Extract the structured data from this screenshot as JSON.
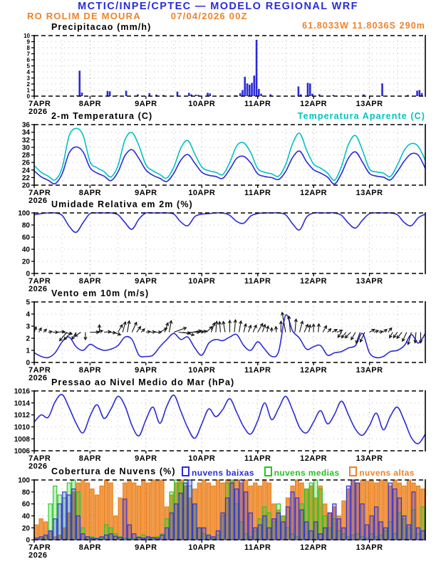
{
  "header": {
    "title": "MCTIC/INPE/CPTEC — MODELO REGIONAL WRF",
    "station": "RO ROLIM DE MOURA",
    "run": "07/04/2026 00Z",
    "coords": "61.8033W 11.8036S 290m"
  },
  "colors": {
    "blue": "#2b2bd8",
    "cyan": "#00c2c2",
    "orange": "#f08228",
    "orange_fill": "#f49a47",
    "orange_stroke": "#e3801f",
    "green": "#22c51f",
    "grid": "#bdbdbd",
    "grid_day": "#a8a8a8",
    "frame": "#000000",
    "arrow": "#111111"
  },
  "x_axis": {
    "days": [
      "7APR",
      "8APR",
      "9APR",
      "10APR",
      "11APR",
      "12APR",
      "13APR"
    ],
    "year": "2026",
    "hours_total": 168
  },
  "chart_data": [
    {
      "id": "precipitation",
      "type": "bar",
      "title": "Precipitacao (mm/h)",
      "ylabel": "mm/h",
      "ylim": [
        0,
        10
      ],
      "yticks": [
        0,
        1,
        2,
        3,
        4,
        5,
        6,
        7,
        8,
        9,
        10
      ],
      "bars_hour": [
        18,
        19,
        20,
        31,
        32,
        35,
        39,
        44,
        49,
        52,
        55,
        61,
        66,
        67,
        69,
        70,
        74,
        75,
        80,
        86,
        88,
        89,
        90,
        91,
        92,
        93,
        94,
        95,
        96,
        97,
        101,
        113,
        114,
        117,
        118,
        119,
        122,
        128,
        134,
        141,
        149,
        160,
        164,
        165,
        166
      ],
      "bars_value": [
        0.15,
        4.2,
        0.6,
        0.85,
        0.8,
        0.15,
        0.9,
        0.3,
        0.5,
        0.25,
        0.2,
        0.75,
        0.55,
        0.3,
        0.25,
        0.2,
        0.55,
        0.45,
        0.1,
        0.15,
        0.5,
        1.0,
        3.2,
        2.1,
        1.9,
        2.2,
        3.4,
        9.3,
        1.2,
        0.4,
        0.3,
        1.6,
        0.3,
        2.2,
        2.1,
        0.4,
        0.3,
        0.2,
        0.15,
        0.3,
        2.1,
        0.2,
        0.9,
        1.0,
        0.5
      ]
    },
    {
      "id": "temperature",
      "type": "line",
      "title": "2-m Temperatura (C)",
      "title2": "Temperatura Aparente (C)",
      "ylim": [
        20,
        36
      ],
      "yticks": [
        20,
        22,
        24,
        26,
        28,
        30,
        32,
        34,
        36
      ],
      "step_h": 3,
      "series": [
        {
          "name": "2-m Temperatura (C)",
          "color": "blue",
          "values": [
            23.8,
            22.2,
            21.3,
            20.4,
            23.0,
            28.5,
            30.1,
            28.8,
            24.6,
            23.2,
            22.4,
            21.2,
            23.5,
            27.8,
            29.4,
            27.0,
            24.0,
            22.6,
            21.8,
            21.0,
            23.2,
            26.6,
            28.1,
            25.8,
            23.4,
            22.6,
            22.3,
            21.8,
            24.2,
            27.1,
            27.6,
            25.9,
            23.0,
            22.3,
            22.0,
            21.5,
            23.6,
            27.3,
            29.0,
            26.2,
            24.1,
            23.2,
            22.1,
            20.3,
            23.1,
            27.2,
            28.8,
            26.1,
            23.1,
            22.4,
            22.1,
            21.4,
            23.6,
            26.4,
            28.3,
            27.9,
            24.4
          ]
        },
        {
          "name": "Temperatura Aparente (C)",
          "color": "cyan",
          "values": [
            25.2,
            23.4,
            22.4,
            21.4,
            24.6,
            33.0,
            35.0,
            33.2,
            26.2,
            24.6,
            23.6,
            22.2,
            25.2,
            32.0,
            33.9,
            30.4,
            25.4,
            23.8,
            22.8,
            21.9,
            24.8,
            29.8,
            31.8,
            28.2,
            24.8,
            23.8,
            23.4,
            22.8,
            26.0,
            30.4,
            31.2,
            28.6,
            24.4,
            23.4,
            23.0,
            22.4,
            25.4,
            31.0,
            33.7,
            29.3,
            25.6,
            24.5,
            23.2,
            21.3,
            25.0,
            30.8,
            33.1,
            29.2,
            24.3,
            23.5,
            23.2,
            22.3,
            25.3,
            29.3,
            31.0,
            30.2,
            26.5
          ]
        }
      ]
    },
    {
      "id": "humidity",
      "type": "line",
      "title": "Umidade Relativa em 2m (%)",
      "ylim": [
        0,
        100
      ],
      "yticks": [
        0,
        20,
        40,
        60,
        80,
        100
      ],
      "step_h": 3,
      "series": [
        {
          "name": "Umidade Relativa em 2m",
          "color": "blue",
          "values": [
            97,
            99,
            100,
            100,
            96,
            78,
            68,
            84,
            99,
            100,
            100,
            100,
            97,
            84,
            73,
            90,
            100,
            100,
            100,
            100,
            98,
            85,
            79,
            94,
            98,
            99,
            100,
            100,
            96,
            86,
            83,
            95,
            99,
            100,
            100,
            100,
            97,
            82,
            72,
            93,
            100,
            100,
            100,
            100,
            96,
            83,
            75,
            88,
            99,
            100,
            100,
            100,
            97,
            84,
            79,
            92,
            98
          ]
        }
      ]
    },
    {
      "id": "wind",
      "type": "line+arrows",
      "title": "Vento em 10m (m/s)",
      "ylim": [
        0,
        5
      ],
      "yticks": [
        0,
        1,
        2,
        3,
        4,
        5
      ],
      "step_h": 3,
      "arrow_anchor": 2.5,
      "arrow_step_h": 2,
      "speed": [
        0.8,
        0.5,
        0.4,
        0.8,
        1.7,
        2.1,
        1.3,
        1.0,
        1.5,
        1.2,
        1.0,
        1.1,
        1.4,
        2.1,
        1.9,
        0.6,
        0.5,
        0.6,
        1.3,
        1.9,
        2.4,
        1.9,
        2.1,
        1.2,
        0.6,
        1.6,
        1.9,
        1.8,
        2.1,
        2.3,
        1.4,
        1.0,
        1.7,
        1.1,
        0.5,
        0.9,
        3.9,
        2.6,
        2.0,
        1.1,
        1.3,
        1.4,
        0.6,
        0.8,
        0.9,
        1.2,
        1.4,
        2.4,
        0.8,
        0.4,
        0.5,
        0.9,
        1.0,
        1.4,
        2.3,
        1.6,
        2.4
      ],
      "dir_deg": [
        70,
        60,
        45,
        10,
        0,
        5,
        350,
        230,
        225,
        240,
        215,
        270,
        0,
        10,
        90,
        5,
        355,
        340,
        60,
        75,
        80,
        65,
        55,
        45,
        10,
        5,
        0,
        30,
        70,
        80,
        20,
        355,
        345,
        0,
        10,
        5,
        15,
        45,
        70,
        85,
        95,
        100,
        90,
        85,
        80,
        75,
        70,
        65,
        60,
        70,
        80,
        90,
        95,
        90,
        100,
        95,
        85,
        75,
        65,
        80,
        90,
        85,
        60,
        45,
        30,
        20,
        235,
        230,
        225,
        240,
        250,
        245,
        30,
        20,
        10,
        40,
        50,
        240,
        235,
        230,
        245,
        255,
        265,
        270
      ]
    },
    {
      "id": "pressure",
      "type": "line",
      "title": "Pressao ao Nivel Medio do Mar (hPa)",
      "ylim": [
        1006,
        1016
      ],
      "yticks": [
        1006,
        1008,
        1010,
        1012,
        1014,
        1016
      ],
      "step_h": 3,
      "series": [
        {
          "name": "Pressao ao Nivel Medio do Mar",
          "color": "blue",
          "values": [
            1010.8,
            1012.0,
            1011.6,
            1014.2,
            1015.4,
            1013.2,
            1010.6,
            1009.0,
            1011.8,
            1013.7,
            1011.4,
            1013.0,
            1015.1,
            1013.5,
            1010.2,
            1008.5,
            1011.2,
            1013.3,
            1010.6,
            1013.5,
            1015.3,
            1012.6,
            1009.8,
            1008.1,
            1010.5,
            1013.0,
            1011.7,
            1012.9,
            1014.7,
            1012.4,
            1010.0,
            1008.8,
            1011.0,
            1014.0,
            1011.2,
            1013.1,
            1015.1,
            1012.8,
            1009.9,
            1009.0,
            1010.8,
            1012.7,
            1010.5,
            1012.1,
            1014.3,
            1012.0,
            1009.6,
            1008.6,
            1010.2,
            1012.3,
            1009.5,
            1011.8,
            1013.3,
            1011.0,
            1008.2,
            1007.2,
            1008.8
          ]
        }
      ]
    },
    {
      "id": "clouds",
      "type": "bar-multi",
      "title": "Cobertura de Nuvens (%)",
      "ylim": [
        0,
        100
      ],
      "yticks": [
        0,
        20,
        40,
        60,
        80,
        100
      ],
      "step_h": 2,
      "series": [
        {
          "name": "nuvens baixas",
          "color": "blue",
          "values": [
            3,
            5,
            8,
            15,
            35,
            60,
            80,
            75,
            85,
            40,
            10,
            5,
            3,
            2,
            5,
            8,
            10,
            6,
            4,
            68,
            25,
            10,
            4,
            3,
            5,
            4,
            3,
            8,
            20,
            45,
            60,
            78,
            95,
            100,
            60,
            20,
            20,
            8,
            5,
            15,
            45,
            70,
            95,
            85,
            100,
            80,
            45,
            20,
            25,
            40,
            20,
            35,
            45,
            30,
            55,
            80,
            70,
            50,
            30,
            15,
            30,
            10,
            20,
            45,
            60,
            35,
            20,
            90,
            100,
            95,
            60,
            25,
            40,
            55,
            30,
            20,
            95,
            85,
            70,
            40,
            25,
            80,
            20,
            15
          ]
        },
        {
          "name": "nuvens medias",
          "color": "green",
          "values": [
            0,
            2,
            5,
            60,
            90,
            75,
            70,
            95,
            100,
            80,
            20,
            5,
            5,
            3,
            2,
            25,
            20,
            10,
            5,
            3,
            2,
            2,
            5,
            8,
            3,
            2,
            5,
            10,
            35,
            80,
            100,
            95,
            100,
            90,
            60,
            20,
            10,
            5,
            3,
            8,
            40,
            95,
            100,
            60,
            30,
            10,
            5,
            15,
            35,
            55,
            45,
            30,
            60,
            40,
            20,
            10,
            5,
            60,
            85,
            95,
            100,
            85,
            40,
            20,
            35,
            15,
            10,
            5,
            8,
            10,
            5,
            3,
            10,
            5,
            8,
            15,
            30,
            10,
            45,
            35,
            20,
            50,
            10,
            55
          ]
        },
        {
          "name": "nuvens altas",
          "color": "orange",
          "values": [
            25,
            35,
            30,
            15,
            5,
            8,
            20,
            45,
            80,
            95,
            100,
            95,
            85,
            75,
            90,
            100,
            95,
            40,
            70,
            95,
            100,
            95,
            90,
            100,
            95,
            100,
            98,
            100,
            55,
            75,
            95,
            100,
            90,
            70,
            85,
            95,
            100,
            95,
            90,
            100,
            95,
            100,
            98,
            100,
            95,
            100,
            90,
            95,
            90,
            100,
            95,
            60,
            50,
            40,
            70,
            90,
            100,
            95,
            85,
            90,
            70,
            90,
            60,
            45,
            55,
            40,
            65,
            85,
            100,
            95,
            100,
            98,
            100,
            95,
            100,
            98,
            90,
            100,
            95,
            90,
            100,
            95,
            90,
            85
          ]
        }
      ]
    }
  ]
}
